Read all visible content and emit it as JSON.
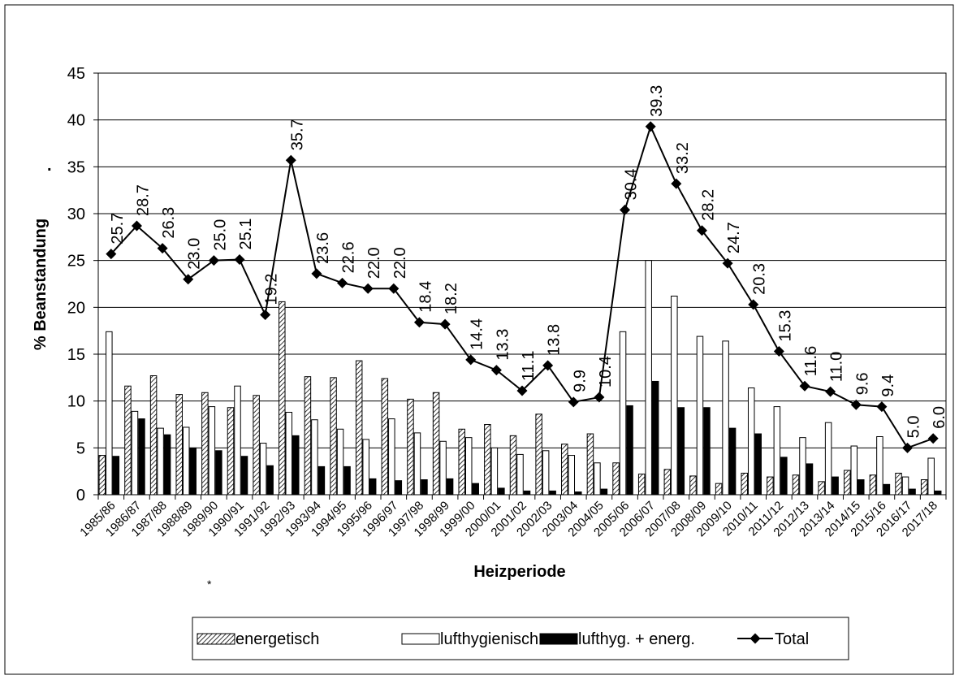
{
  "chart_data": {
    "type": "bar",
    "y_label": "% Beanstandung",
    "x_label": "Heizperiode",
    "annotations": [
      ".",
      "*"
    ],
    "categories": [
      "1985/86",
      "1986/87",
      "1987/88",
      "1988/89",
      "1989/90",
      "1990/91",
      "1991/92",
      "1992/93",
      "1993/94",
      "1994/95",
      "1995/96",
      "1996/97",
      "1997/98",
      "1998/99",
      "1999/00",
      "2000/01",
      "2001/02",
      "2002/03",
      "2003/04",
      "2004/05",
      "2005/06",
      "2006/07",
      "2007/08",
      "2008/09",
      "2009/10",
      "2010/11",
      "2011/12",
      "2012/13",
      "2013/14",
      "2014/15",
      "2015/16",
      "2016/17",
      "2017/18"
    ],
    "series": [
      {
        "name": "energetisch",
        "type": "bar",
        "color": "#ffffff",
        "pattern": "hatch",
        "values": [
          4.2,
          11.6,
          12.7,
          10.7,
          10.9,
          9.3,
          10.6,
          20.6,
          12.6,
          12.5,
          14.3,
          12.4,
          10.2,
          10.9,
          7.0,
          7.5,
          6.3,
          8.6,
          5.4,
          6.5,
          3.4,
          2.2,
          2.7,
          2.0,
          1.2,
          2.3,
          1.9,
          2.1,
          1.4,
          2.6,
          2.1,
          2.3,
          1.6
        ]
      },
      {
        "name": "lufthygienisch",
        "type": "bar",
        "color": "#ffffff",
        "values": [
          17.4,
          8.9,
          7.1,
          7.2,
          9.4,
          11.6,
          5.5,
          8.8,
          8.0,
          7.0,
          5.9,
          8.1,
          6.6,
          5.7,
          6.1,
          5.0,
          4.3,
          4.7,
          4.2,
          3.4,
          17.4,
          25.0,
          21.2,
          16.9,
          16.4,
          11.4,
          9.4,
          6.1,
          7.7,
          5.2,
          6.2,
          1.9,
          3.9
        ]
      },
      {
        "name": "lufthyg. + energ.",
        "type": "bar",
        "color": "#000000",
        "values": [
          4.1,
          8.1,
          6.4,
          5.0,
          4.7,
          4.1,
          3.1,
          6.3,
          3.0,
          3.0,
          1.7,
          1.5,
          1.6,
          1.7,
          1.2,
          0.7,
          0.4,
          0.4,
          0.3,
          0.6,
          9.5,
          12.1,
          9.3,
          9.3,
          7.1,
          6.5,
          4.0,
          3.3,
          1.9,
          1.6,
          1.1,
          0.6,
          0.4
        ]
      },
      {
        "name": "Total",
        "type": "line",
        "color": "#000000",
        "values": [
          25.7,
          28.7,
          26.3,
          23.0,
          25.0,
          25.1,
          19.2,
          35.7,
          23.6,
          22.6,
          22.0,
          22.0,
          18.4,
          18.2,
          14.4,
          13.3,
          11.1,
          13.8,
          9.9,
          10.4,
          30.4,
          39.3,
          33.2,
          28.2,
          24.7,
          20.3,
          15.3,
          11.6,
          11.0,
          9.6,
          9.4,
          5.0,
          6.0
        ],
        "value_labels": [
          "25.7",
          "28.7",
          "26.3",
          "23.0",
          "25.0",
          "25.1",
          "19.2",
          "35.7",
          "23.6",
          "22.6",
          "22.0",
          "22.0",
          "18.4",
          "18.2",
          "14.4",
          "13.3",
          "11.1",
          "13.8",
          "9.9",
          "10.4",
          "30.4",
          "39.3",
          "33.2",
          "28.2",
          "24.7",
          "20.3",
          "15.3",
          "11.6",
          "11.0",
          "9.6",
          "9.4",
          "5.0",
          "6.0"
        ]
      }
    ],
    "ylim": [
      0,
      45
    ],
    "yticks": [
      0,
      5,
      10,
      15,
      20,
      25,
      30,
      35,
      40,
      45
    ],
    "grid": true,
    "legend": "bottom"
  }
}
